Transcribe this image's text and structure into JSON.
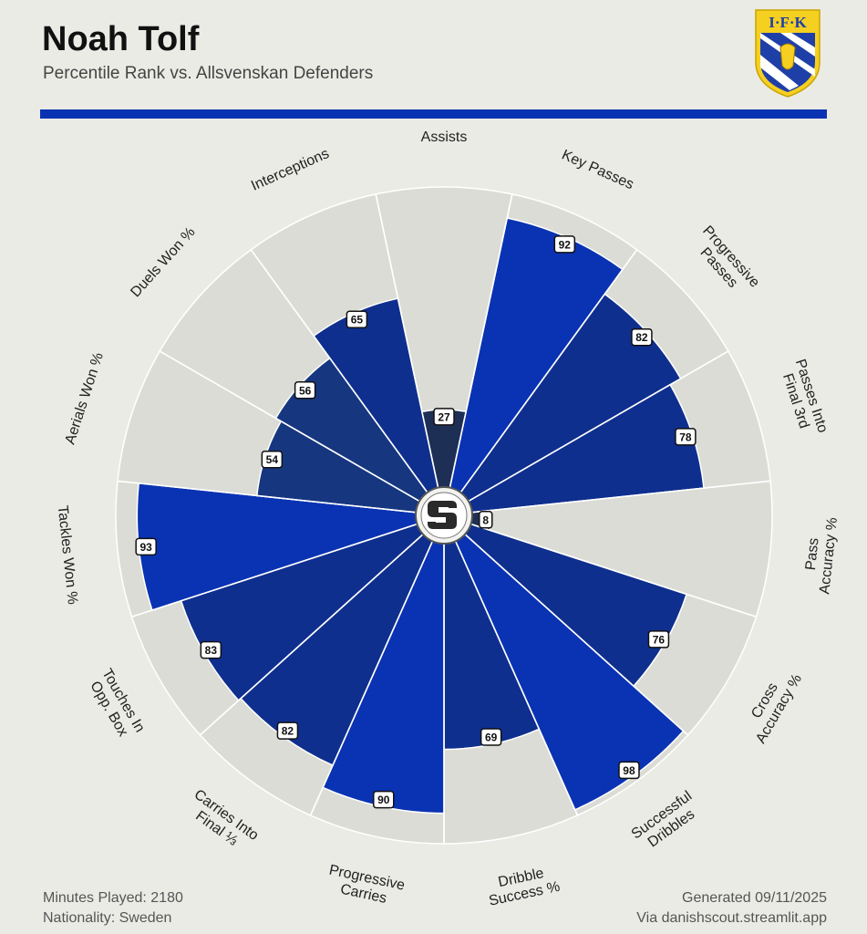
{
  "header": {
    "player_name": "Noah Tolf",
    "subtitle": "Percentile Rank vs. Allsvenskan Defenders",
    "club_logo_text": "I·F·K"
  },
  "footer": {
    "minutes_played": "Minutes Played: 2180",
    "nationality": "Nationality: Sweden",
    "generated": "Generated 09/11/2025",
    "source": "Via danishscout.streamlit.app"
  },
  "colors": {
    "background": "#ebebe6",
    "slice_background": "#dcdcd6",
    "accent": "#0a33b3"
  },
  "chart_data": {
    "type": "radar-bar",
    "title": "Percentile Rank vs. Allsvenskan Defenders",
    "range": [
      0,
      100
    ],
    "categories": [
      [
        "Assists"
      ],
      [
        "Key Passes"
      ],
      [
        "Progressive",
        "Passes"
      ],
      [
        "Passes Into",
        "Final 3rd"
      ],
      [
        "Pass",
        "Accuracy %"
      ],
      [
        "Cross",
        "Accuracy %"
      ],
      [
        "Successful",
        "Dribbles"
      ],
      [
        "Dribble",
        "Success %"
      ],
      [
        "Progressive",
        "Carries"
      ],
      [
        "Carries Into",
        "Final ⅓"
      ],
      [
        "Touches In",
        "Opp. Box"
      ],
      [
        "Tackles Won %"
      ],
      [
        "Aerials Won %"
      ],
      [
        "Duels Won %"
      ],
      [
        "Interceptions"
      ]
    ],
    "values": [
      27,
      92,
      82,
      78,
      8,
      76,
      98,
      69,
      90,
      82,
      83,
      93,
      54,
      56,
      65
    ]
  }
}
